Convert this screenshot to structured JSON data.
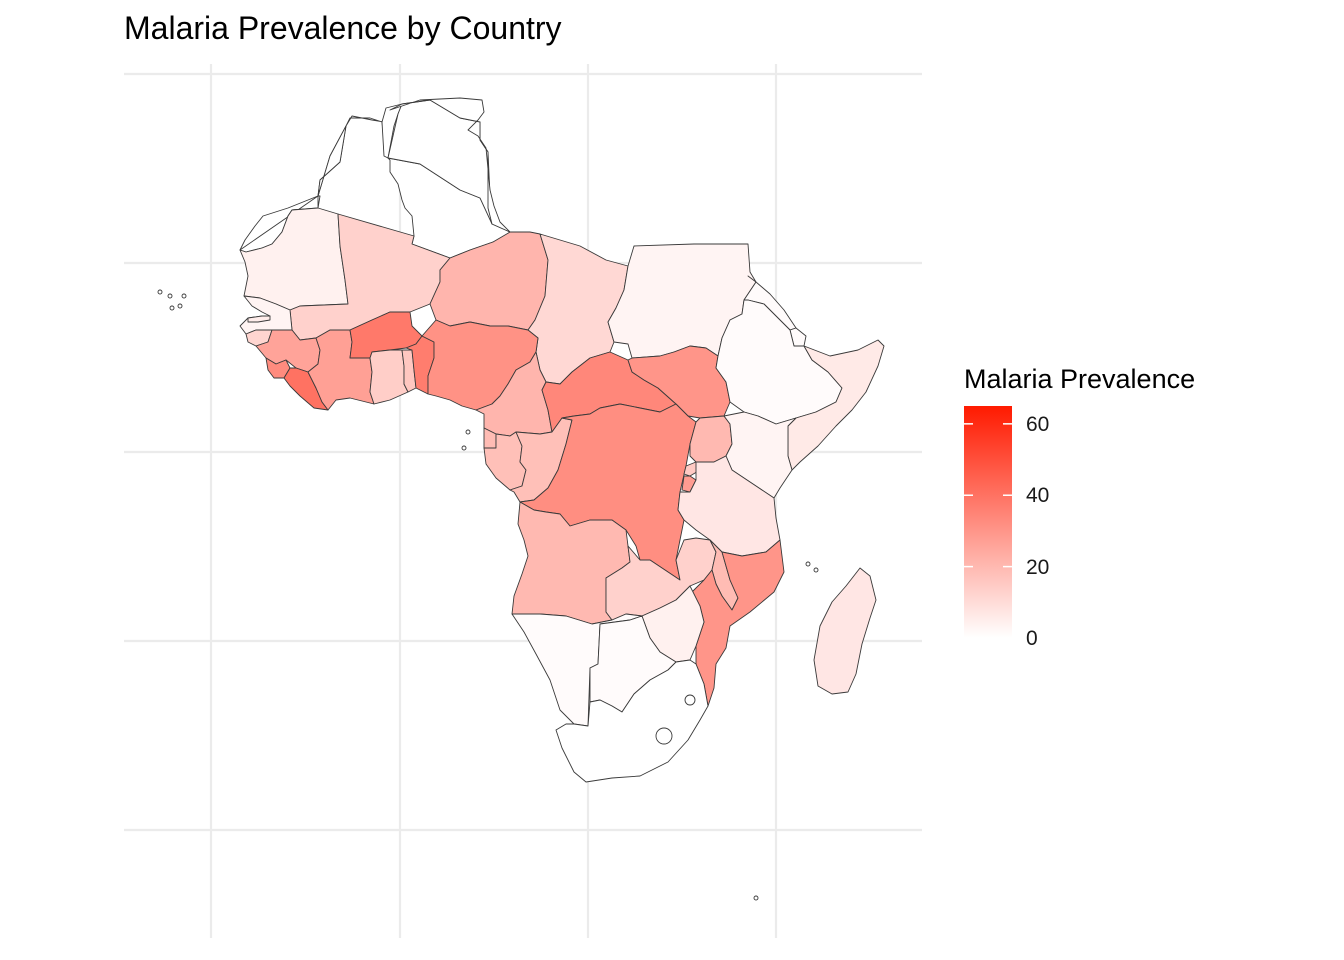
{
  "title": "Malaria Prevalence by Country",
  "legend": {
    "title": "Malaria Prevalence",
    "min": 0,
    "max": 65,
    "ticks": [
      {
        "value": 0,
        "label": "0"
      },
      {
        "value": 20,
        "label": "20"
      },
      {
        "value": 40,
        "label": "40"
      },
      {
        "value": 60,
        "label": "60"
      }
    ],
    "low_color": "#ffffff",
    "high_color": "#ff1a00"
  },
  "countries": [
    {
      "id": "morocco",
      "value": null
    },
    {
      "id": "algeria",
      "value": null
    },
    {
      "id": "tunisia",
      "value": null
    },
    {
      "id": "libya",
      "value": null
    },
    {
      "id": "egypt",
      "value": null
    },
    {
      "id": "western-sahara",
      "value": null
    },
    {
      "id": "mauritania",
      "value": 4
    },
    {
      "id": "mali",
      "value": 13
    },
    {
      "id": "niger",
      "value": 21
    },
    {
      "id": "chad",
      "value": 11
    },
    {
      "id": "sudan",
      "value": 3
    },
    {
      "id": "senegal",
      "value": 3
    },
    {
      "id": "gambia",
      "value": 5
    },
    {
      "id": "guinea-bissau",
      "value": 12
    },
    {
      "id": "guinea",
      "value": 26
    },
    {
      "id": "sierra-leone",
      "value": 33
    },
    {
      "id": "liberia",
      "value": 40
    },
    {
      "id": "cote-divoire",
      "value": 27
    },
    {
      "id": "burkina-faso",
      "value": 38
    },
    {
      "id": "ghana",
      "value": 14
    },
    {
      "id": "togo",
      "value": 16
    },
    {
      "id": "benin",
      "value": 37
    },
    {
      "id": "nigeria",
      "value": 31
    },
    {
      "id": "cameroon",
      "value": 21
    },
    {
      "id": "central-african-republic",
      "value": 34
    },
    {
      "id": "south-sudan",
      "value": 30
    },
    {
      "id": "ethiopia",
      "value": 1
    },
    {
      "id": "eritrea",
      "value": 1
    },
    {
      "id": "djibouti",
      "value": 1
    },
    {
      "id": "somalia",
      "value": 6
    },
    {
      "id": "equatorial-guinea",
      "value": 19
    },
    {
      "id": "gabon",
      "value": 18
    },
    {
      "id": "republic-of-congo",
      "value": 18
    },
    {
      "id": "drc",
      "value": 32
    },
    {
      "id": "uganda",
      "value": 20
    },
    {
      "id": "kenya",
      "value": 3
    },
    {
      "id": "rwanda",
      "value": 15
    },
    {
      "id": "burundi",
      "value": 28
    },
    {
      "id": "tanzania",
      "value": 7
    },
    {
      "id": "angola",
      "value": 20
    },
    {
      "id": "zambia",
      "value": 13
    },
    {
      "id": "malawi",
      "value": 19
    },
    {
      "id": "mozambique",
      "value": 30
    },
    {
      "id": "zimbabwe",
      "value": 4
    },
    {
      "id": "namibia",
      "value": 1
    },
    {
      "id": "botswana",
      "value": 1
    },
    {
      "id": "south-africa",
      "value": 0
    },
    {
      "id": "madagascar",
      "value": 7
    }
  ]
}
